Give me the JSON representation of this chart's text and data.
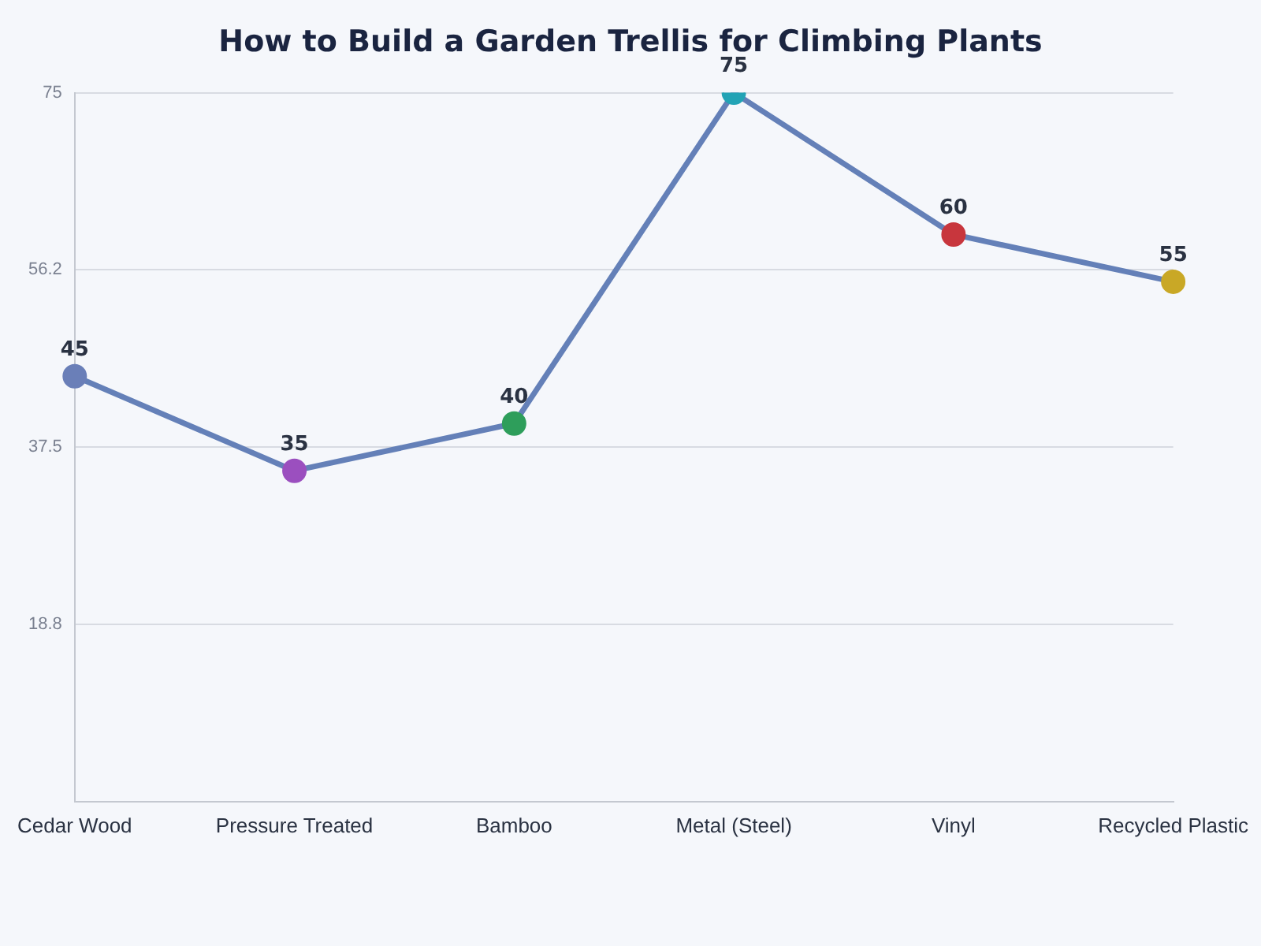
{
  "chart_data": {
    "type": "line",
    "title": "How to Build a Garden Trellis for Climbing Plants",
    "categories": [
      "Cedar Wood",
      "Pressure Treated",
      "Bamboo",
      "Metal (Steel)",
      "Vinyl",
      "Recycled Plastic"
    ],
    "series": [
      {
        "color": "#6480b8",
        "values": [
          45,
          35,
          40,
          75,
          60,
          55
        ],
        "colors": [
          "#6a7fb8",
          "#9b4fbf",
          "#2e9e5b",
          "#22a3b5",
          "#c8363d",
          "#c9a826"
        ]
      }
    ],
    "ylim": [
      0,
      75
    ],
    "yticks": [
      {
        "value": 18.75,
        "label": "18.8"
      },
      {
        "value": 37.5,
        "label": "37.5"
      },
      {
        "value": 56.25,
        "label": "56.2"
      },
      75
    ],
    "grid": "y",
    "legend": false,
    "marker": "circle",
    "line_style": "solid",
    "data_labels": true
  }
}
